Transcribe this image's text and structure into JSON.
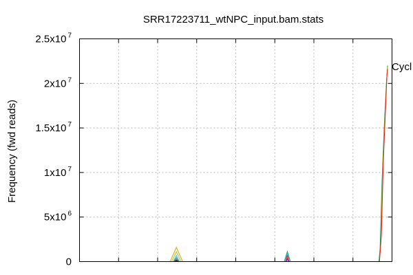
{
  "chart_data": {
    "type": "line",
    "title": "SRR17223711_wtNPC_input.bam.stats",
    "ylabel": "Frequency (fwd reads)",
    "xlabel": "",
    "xlim": [
      0,
      100
    ],
    "ylim": [
      0,
      25000000
    ],
    "grid": true,
    "y_ticks": [
      {
        "value": 0,
        "base": "0",
        "exp": ""
      },
      {
        "value": 5000000,
        "base": "5x10",
        "exp": "6"
      },
      {
        "value": 10000000,
        "base": "1x10",
        "exp": "7"
      },
      {
        "value": 15000000,
        "base": "1.5x10",
        "exp": "7"
      },
      {
        "value": 20000000,
        "base": "2x10",
        "exp": "7"
      },
      {
        "value": 25000000,
        "base": "2.5x10",
        "exp": "7"
      }
    ],
    "x_grid": [
      12.5,
      25,
      37.5,
      50,
      62.5,
      75,
      87.5
    ],
    "legend": {
      "label": "Cycl",
      "placement": "top-right"
    },
    "series": [
      {
        "color": "#e6a000",
        "x": [
          29,
          31,
          33
        ],
        "y": [
          0,
          1600000,
          0
        ]
      },
      {
        "color": "#99cc33",
        "x": [
          29.5,
          31,
          32.5
        ],
        "y": [
          0,
          1100000,
          0
        ]
      },
      {
        "color": "#56b4e9",
        "x": [
          30,
          31,
          32
        ],
        "y": [
          0,
          700000,
          0
        ]
      },
      {
        "color": "#009e73",
        "x": [
          30.2,
          31,
          31.8
        ],
        "y": [
          0,
          450000,
          0
        ]
      },
      {
        "color": "#e51e10",
        "x": [
          30.4,
          31,
          31.6
        ],
        "y": [
          0,
          250000,
          0
        ]
      },
      {
        "color": "#000000",
        "x": [
          30.6,
          31,
          31.4
        ],
        "y": [
          0,
          120000,
          0
        ]
      },
      {
        "color": "#009e73",
        "x": [
          65.5,
          66.5,
          67.5
        ],
        "y": [
          0,
          1100000,
          0
        ]
      },
      {
        "color": "#56b4e9",
        "x": [
          65.8,
          66.5,
          67.2
        ],
        "y": [
          0,
          900000,
          0
        ]
      },
      {
        "color": "#e51e10",
        "x": [
          66,
          66.5,
          67
        ],
        "y": [
          0,
          700000,
          0
        ]
      },
      {
        "color": "#9400d3",
        "x": [
          66.2,
          66.5,
          66.8
        ],
        "y": [
          0,
          350000,
          0
        ]
      },
      {
        "color": "#009e73",
        "x": [
          95.8,
          96.2,
          96.8,
          97.5,
          98.2,
          98.6
        ],
        "y": [
          0,
          1500000,
          9000000,
          15000000,
          20000000,
          22000000
        ]
      },
      {
        "color": "#e6a000",
        "x": [
          95.9,
          96.4,
          97,
          97.7,
          98.3,
          98.6
        ],
        "y": [
          0,
          2000000,
          10000000,
          16000000,
          20500000,
          21800000
        ]
      },
      {
        "color": "#e51e10",
        "x": [
          96,
          96.6,
          97.2,
          97.9,
          98.4,
          98.6
        ],
        "y": [
          0,
          3000000,
          11000000,
          17000000,
          21000000,
          21600000
        ]
      }
    ]
  }
}
